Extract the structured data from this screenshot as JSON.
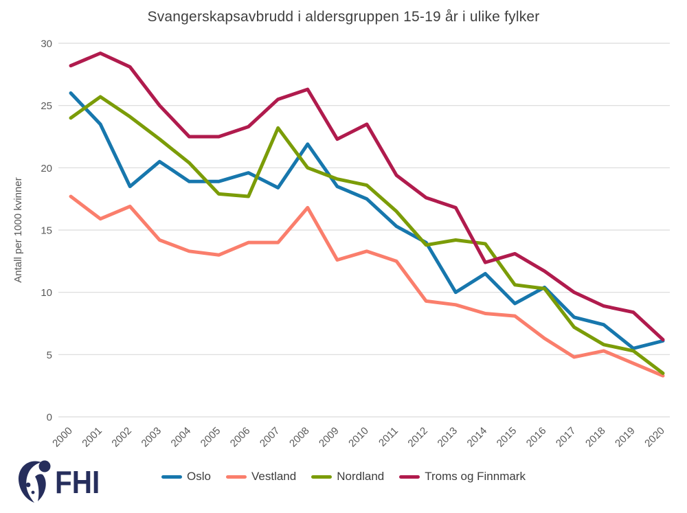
{
  "chart_data": {
    "type": "line",
    "title": "Svangerskapsavbrudd i aldersgruppen 15-19 år i ulike fylker",
    "xlabel": "",
    "ylabel": "Antall per 1000 kvinner",
    "ylim": [
      0,
      30
    ],
    "ytick_step": 5,
    "grid": "horizontal",
    "legend_position": "bottom",
    "x": [
      2000,
      2001,
      2002,
      2003,
      2004,
      2005,
      2006,
      2007,
      2008,
      2009,
      2010,
      2011,
      2012,
      2013,
      2014,
      2015,
      2016,
      2017,
      2018,
      2019,
      2020
    ],
    "series": [
      {
        "name": "Oslo",
        "color": "#1777ad",
        "values": [
          26.0,
          23.5,
          18.5,
          20.5,
          18.9,
          18.9,
          19.6,
          18.4,
          21.9,
          18.5,
          17.5,
          15.3,
          14.0,
          10.0,
          11.5,
          9.1,
          10.4,
          8.0,
          7.4,
          5.5,
          6.1
        ]
      },
      {
        "name": "Vestland",
        "color": "#fa7e6c",
        "values": [
          17.7,
          15.9,
          16.9,
          14.2,
          13.3,
          13.0,
          14.0,
          14.0,
          16.8,
          12.6,
          13.3,
          12.5,
          9.3,
          9.0,
          8.3,
          8.1,
          6.3,
          4.8,
          5.3,
          4.3,
          3.3
        ]
      },
      {
        "name": "Nordland",
        "color": "#7b9c08",
        "values": [
          24.0,
          25.7,
          24.1,
          22.3,
          20.4,
          17.9,
          17.7,
          23.2,
          20.0,
          19.1,
          18.6,
          16.5,
          13.8,
          14.2,
          13.9,
          10.6,
          10.3,
          7.2,
          5.8,
          5.3,
          3.5
        ]
      },
      {
        "name": "Troms og Finnmark",
        "color": "#b01b4d",
        "values": [
          28.2,
          29.2,
          28.1,
          25.0,
          22.5,
          22.5,
          23.3,
          25.5,
          26.3,
          22.3,
          23.5,
          19.4,
          17.6,
          16.8,
          12.4,
          13.1,
          11.7,
          10.0,
          8.9,
          8.4,
          6.2
        ]
      }
    ]
  },
  "footer": {
    "logo_text": "FHI"
  },
  "style": {
    "background": "#ffffff",
    "grid_color": "#d9d9d9",
    "tick_label_color": "#595959",
    "title_color": "#3f3f3f",
    "legend_text_color": "#3d3d3d",
    "logo_color": "#262e5c"
  }
}
